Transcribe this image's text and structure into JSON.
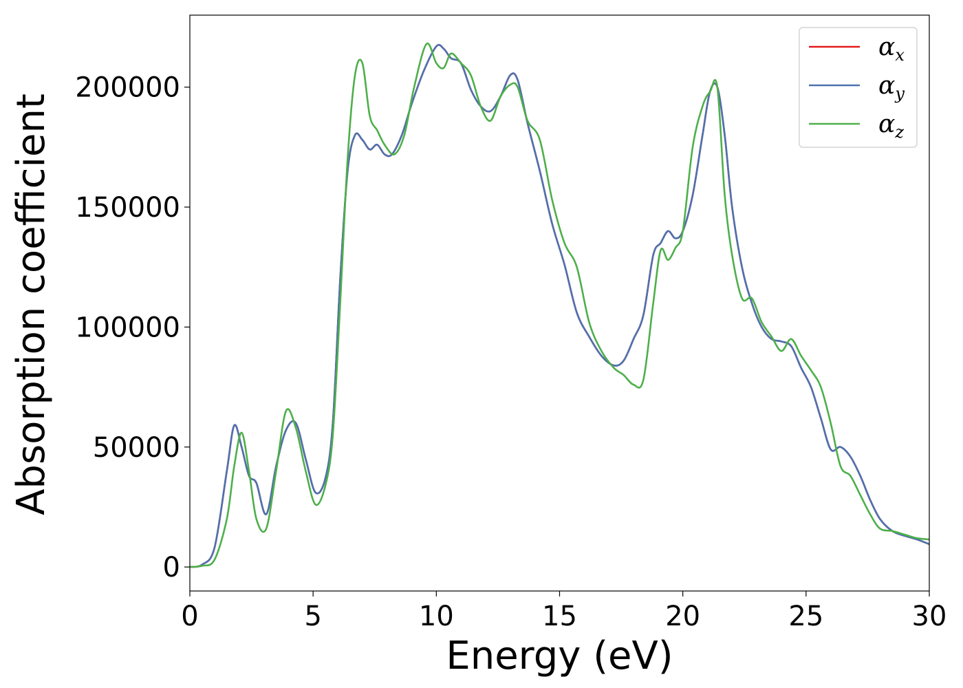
{
  "chart_data": {
    "type": "line",
    "title": "",
    "xlabel": "Energy (eV)",
    "ylabel": "Absorption coefficient",
    "xlim": [
      0,
      30
    ],
    "ylim": [
      -10000,
      230000
    ],
    "xticks": [
      0,
      5,
      10,
      15,
      20,
      25,
      30
    ],
    "yticks": [
      0,
      50000,
      100000,
      150000,
      200000
    ],
    "grid": false,
    "legend_position": "top-right",
    "series": [
      {
        "name": "αx",
        "symbol": "α",
        "subscript": "x",
        "color": "#e41a1c",
        "x": [
          0,
          0.5,
          1,
          1.5,
          1.8,
          2.1,
          2.4,
          2.7,
          3.1,
          3.5,
          3.9,
          4.3,
          4.7,
          5.1,
          5.5,
          5.8,
          6.1,
          6.4,
          6.7,
          7,
          7.3,
          7.6,
          7.9,
          8.2,
          8.6,
          9,
          9.5,
          10,
          10.3,
          10.6,
          11,
          11.4,
          11.8,
          12.2,
          12.6,
          13,
          13.3,
          13.7,
          14.2,
          14.7,
          15.2,
          15.7,
          16.2,
          16.7,
          17.2,
          17.6,
          18,
          18.4,
          18.8,
          19.1,
          19.4,
          19.7,
          20,
          20.4,
          20.8,
          21.1,
          21.4,
          21.7,
          22,
          22.4,
          22.8,
          23.2,
          23.6,
          24,
          24.4,
          24.8,
          25.2,
          25.6,
          26,
          26.4,
          26.8,
          27.2,
          27.6,
          28,
          28.5,
          29,
          29.5,
          30
        ],
        "y": [
          0,
          1000,
          8000,
          40000,
          59000,
          50000,
          38000,
          35000,
          22000,
          42000,
          57000,
          60000,
          45000,
          31000,
          37000,
          60000,
          120000,
          165000,
          180000,
          178000,
          174000,
          176000,
          172000,
          172000,
          180000,
          193000,
          207000,
          217000,
          216000,
          212000,
          210000,
          199000,
          192000,
          190000,
          196000,
          205000,
          203000,
          185000,
          165000,
          143000,
          126000,
          106000,
          96000,
          88000,
          84000,
          86000,
          95000,
          105000,
          130000,
          135000,
          140000,
          137000,
          140000,
          155000,
          180000,
          198000,
          200000,
          180000,
          150000,
          125000,
          110000,
          100000,
          95000,
          94000,
          92000,
          83000,
          75000,
          62000,
          49000,
          50000,
          46000,
          38000,
          28000,
          20000,
          15000,
          13000,
          11500,
          9500
        ]
      },
      {
        "name": "αy",
        "symbol": "α",
        "subscript": "y",
        "color": "#4c72b0",
        "x": [
          0,
          0.5,
          1,
          1.5,
          1.8,
          2.1,
          2.4,
          2.7,
          3.1,
          3.5,
          3.9,
          4.3,
          4.7,
          5.1,
          5.5,
          5.8,
          6.1,
          6.4,
          6.7,
          7,
          7.3,
          7.6,
          7.9,
          8.2,
          8.6,
          9,
          9.5,
          10,
          10.3,
          10.6,
          11,
          11.4,
          11.8,
          12.2,
          12.6,
          13,
          13.3,
          13.7,
          14.2,
          14.7,
          15.2,
          15.7,
          16.2,
          16.7,
          17.2,
          17.6,
          18,
          18.4,
          18.8,
          19.1,
          19.4,
          19.7,
          20,
          20.4,
          20.8,
          21.1,
          21.4,
          21.7,
          22,
          22.4,
          22.8,
          23.2,
          23.6,
          24,
          24.4,
          24.8,
          25.2,
          25.6,
          26,
          26.4,
          26.8,
          27.2,
          27.6,
          28,
          28.5,
          29,
          29.5,
          30
        ],
        "y": [
          0,
          1000,
          8000,
          40000,
          59000,
          50000,
          38000,
          35000,
          22000,
          42000,
          57000,
          60000,
          45000,
          31000,
          37000,
          60000,
          120000,
          165000,
          180000,
          178000,
          174000,
          176000,
          172000,
          172000,
          180000,
          193000,
          207000,
          217000,
          216000,
          212000,
          210000,
          199000,
          192000,
          190000,
          196000,
          205000,
          203000,
          185000,
          165000,
          143000,
          126000,
          106000,
          96000,
          88000,
          84000,
          86000,
          95000,
          105000,
          130000,
          135000,
          140000,
          137000,
          140000,
          155000,
          180000,
          198000,
          200000,
          180000,
          150000,
          125000,
          110000,
          100000,
          95000,
          94000,
          92000,
          83000,
          75000,
          62000,
          49000,
          50000,
          46000,
          38000,
          28000,
          20000,
          15000,
          13000,
          11500,
          9500
        ]
      },
      {
        "name": "αz",
        "symbol": "α",
        "subscript": "z",
        "color": "#4daf4a",
        "x": [
          0,
          0.5,
          1,
          1.5,
          1.8,
          2.1,
          2.4,
          2.7,
          3.1,
          3.5,
          3.9,
          4.3,
          4.7,
          5.1,
          5.5,
          5.8,
          6.1,
          6.4,
          6.7,
          7,
          7.3,
          7.6,
          7.9,
          8.3,
          8.7,
          9.1,
          9.6,
          10,
          10.3,
          10.6,
          11,
          11.4,
          11.8,
          12.2,
          12.6,
          13,
          13.3,
          13.7,
          14.2,
          14.7,
          15.2,
          15.7,
          16.2,
          16.7,
          17.2,
          17.6,
          18,
          18.4,
          18.8,
          19.1,
          19.4,
          19.7,
          20,
          20.4,
          20.8,
          21.1,
          21.4,
          21.7,
          22,
          22.4,
          22.8,
          23.2,
          23.6,
          24,
          24.4,
          24.8,
          25.2,
          25.6,
          26,
          26.4,
          26.8,
          27.2,
          27.6,
          28,
          28.5,
          29,
          29.5,
          30
        ],
        "y": [
          0,
          500,
          3000,
          20000,
          42000,
          56000,
          40000,
          20000,
          16000,
          40000,
          65000,
          58000,
          40000,
          26000,
          34000,
          55000,
          110000,
          170000,
          205000,
          210000,
          188000,
          182000,
          176000,
          172000,
          180000,
          200000,
          218000,
          210000,
          208000,
          214000,
          210000,
          205000,
          192000,
          186000,
          196000,
          201000,
          200000,
          186000,
          178000,
          153000,
          135000,
          125000,
          102000,
          90000,
          83000,
          80000,
          76000,
          78000,
          110000,
          132000,
          128000,
          133000,
          140000,
          175000,
          192000,
          198000,
          200000,
          155000,
          130000,
          112000,
          112000,
          102000,
          96000,
          90000,
          95000,
          88000,
          82000,
          75000,
          60000,
          42000,
          38000,
          30000,
          22000,
          16000,
          15000,
          13500,
          12000,
          11500
        ]
      }
    ]
  }
}
